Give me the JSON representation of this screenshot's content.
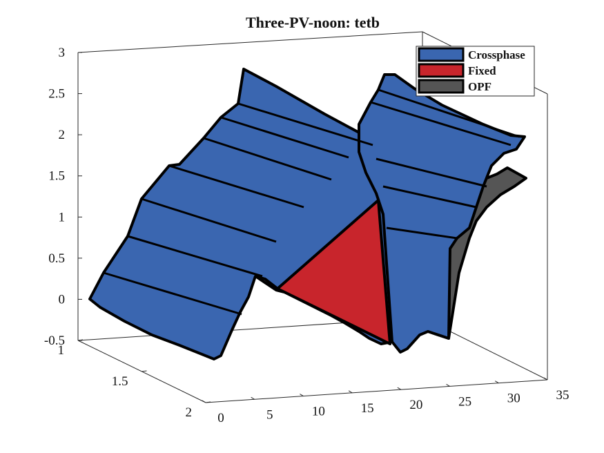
{
  "chart_data": {
    "type": "surface-3d",
    "title": "Three-PV-noon: tetb",
    "xlabel": "",
    "ylabel": "",
    "zlabel": "",
    "x_ticks": [
      "0",
      "5",
      "10",
      "15",
      "20",
      "25",
      "30",
      "35"
    ],
    "y_ticks": [
      "1",
      "1.5",
      "2"
    ],
    "z_ticks": [
      "-0.5",
      "0",
      "0.5",
      "1",
      "1.5",
      "2",
      "2.5",
      "3"
    ],
    "xlim": [
      0,
      35
    ],
    "ylim": [
      1,
      2
    ],
    "zlim": [
      -0.5,
      3
    ],
    "grid": false,
    "legend_position": "top-right",
    "series": [
      {
        "name": "Crossphase",
        "color": "#3a66b0",
        "x": [
          0,
          1,
          3,
          5,
          6,
          8,
          9,
          11,
          12,
          14,
          15,
          17,
          18,
          19,
          20,
          21,
          22,
          23,
          24,
          26,
          27,
          28,
          29,
          30,
          31,
          32,
          33
        ],
        "z": [
          0,
          0.1,
          0.5,
          1.15,
          1.2,
          1.5,
          1.55,
          1.85,
          1.95,
          2.25,
          2.35,
          2.8,
          2.6,
          1.75,
          0.35,
          -0.2,
          0.05,
          0.8,
          1.9,
          2.2,
          2.4,
          2.5,
          2.55,
          2.4,
          2.3,
          2.35,
          2.25
        ]
      },
      {
        "name": "Fixed",
        "color": "#c8252c",
        "x": [
          13,
          17,
          20
        ],
        "z": [
          0,
          1.1,
          0
        ]
      },
      {
        "name": "OPF",
        "color": "#555555",
        "x": [
          13,
          14,
          15,
          16,
          17,
          18,
          19,
          20,
          21,
          22,
          23,
          24,
          25,
          26,
          27,
          28,
          29,
          30,
          31,
          32,
          33
        ],
        "z": [
          0,
          0.12,
          0.2,
          0.3,
          0.5,
          0.75,
          1.0,
          1.15,
          1.3,
          1.45,
          1.55,
          1.65,
          1.72,
          1.78,
          1.8,
          1.78,
          1.72,
          1.6,
          1.45,
          1.2,
          0.85
        ]
      }
    ]
  }
}
